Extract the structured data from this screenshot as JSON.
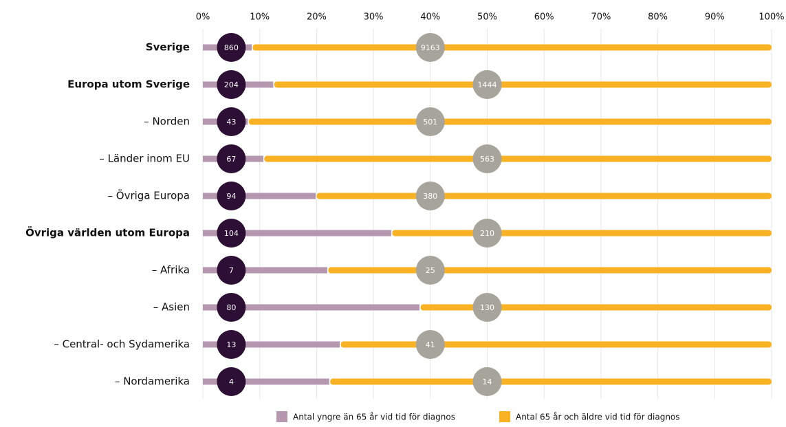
{
  "chart_data": {
    "type": "bar",
    "orientation": "horizontal",
    "stack": "percent",
    "categories": [
      "Sverige",
      "Europa utom Sverige",
      "– Norden",
      "– Länder inom EU",
      "– Övriga Europa",
      "Övriga världen utom Europa",
      "– Afrika",
      "– Asien",
      "– Central- och Sydamerika",
      "– Nordamerika"
    ],
    "emphasized": [
      true,
      true,
      false,
      false,
      false,
      true,
      false,
      false,
      false,
      false
    ],
    "series": [
      {
        "name": "Antal yngre än 65 år vid tid för diagnos",
        "color": "#b597b0",
        "label_color": "#2d0f35",
        "values": [
          860,
          204,
          43,
          67,
          94,
          104,
          7,
          80,
          13,
          4
        ]
      },
      {
        "name": "Antal 65 år och äldre vid tid för diagnos",
        "color": "#f9b223",
        "label_color": "#a7a49c",
        "values": [
          9163,
          1444,
          501,
          563,
          380,
          210,
          25,
          130,
          41,
          14
        ]
      }
    ],
    "xlim": [
      0,
      100
    ],
    "xticks": [
      {
        "value": 0,
        "label": "0%"
      },
      {
        "value": 10,
        "label": "10%"
      },
      {
        "value": 20,
        "label": "20%"
      },
      {
        "value": 30,
        "label": "30%"
      },
      {
        "value": 40,
        "label": "40%"
      },
      {
        "value": 50,
        "label": "50%"
      },
      {
        "value": 60,
        "label": "60%"
      },
      {
        "value": 70,
        "label": "70%"
      },
      {
        "value": 80,
        "label": "80%"
      },
      {
        "value": 90,
        "label": "90%"
      },
      {
        "value": 100,
        "label": "100%"
      }
    ],
    "grid": true
  }
}
